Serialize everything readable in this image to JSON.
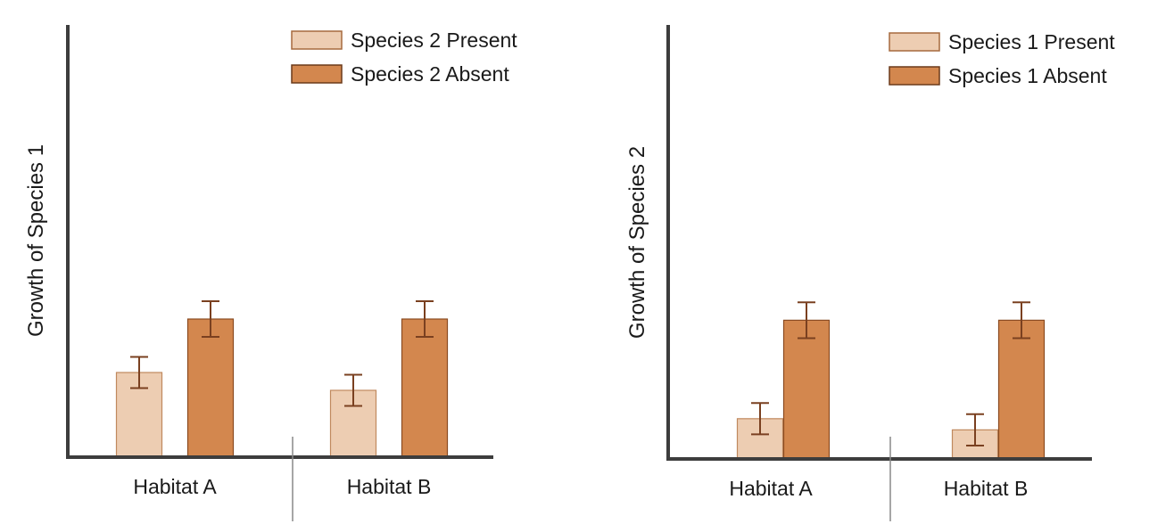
{
  "chart_data": [
    {
      "type": "bar",
      "title": "",
      "xlabel": "",
      "ylabel": "Growth of Species 1",
      "categories": [
        "Habitat A",
        "Habitat B"
      ],
      "series": [
        {
          "name": "Species 2 Present",
          "color": "#edcdb2",
          "values": [
            19,
            15
          ],
          "error": [
            3.5,
            3.5
          ]
        },
        {
          "name": "Species 2 Absent",
          "color": "#d3874e",
          "values": [
            31,
            31
          ],
          "error": [
            4,
            4
          ]
        }
      ],
      "ylim": [
        0,
        97
      ],
      "legend": "top-right",
      "grid": false
    },
    {
      "type": "bar",
      "title": "",
      "xlabel": "",
      "ylabel": "Growth of Species 2",
      "categories": [
        "Habitat A",
        "Habitat B"
      ],
      "series": [
        {
          "name": "Species 1 Present",
          "color": "#edcdb2",
          "values": [
            9,
            6.5
          ],
          "error": [
            3.5,
            3.5
          ]
        },
        {
          "name": "Species 1 Absent",
          "color": "#d3874e",
          "values": [
            31,
            31
          ],
          "error": [
            4,
            4
          ]
        }
      ],
      "ylim": [
        0,
        97
      ],
      "legend": "top-right",
      "grid": false
    }
  ]
}
